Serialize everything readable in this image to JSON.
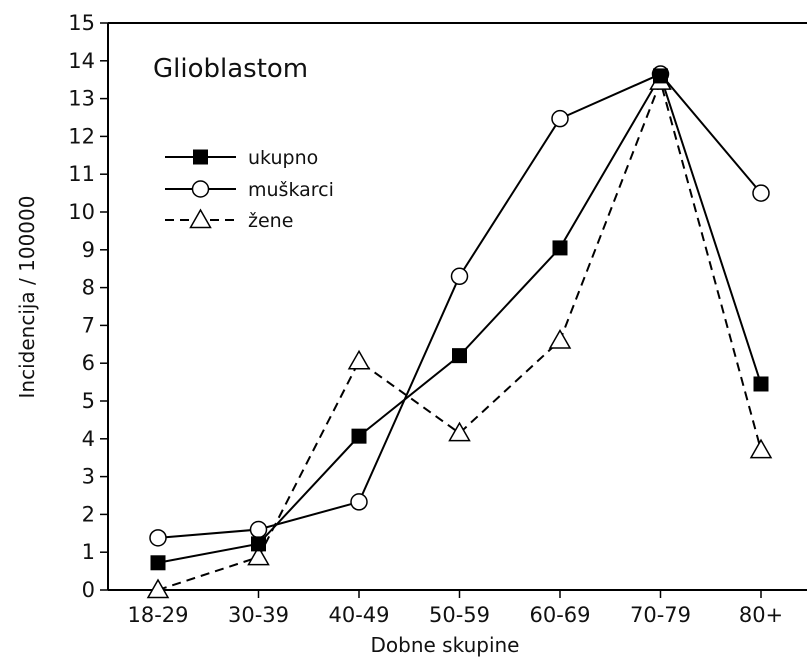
{
  "chart_data": {
    "type": "line",
    "title": "Glioblastom",
    "xlabel": "Dobne skupine",
    "ylabel": "Incidencija / 100000",
    "categories": [
      "18-29",
      "30-39",
      "40-49",
      "50-59",
      "60-69",
      "70-79",
      "80+"
    ],
    "ylim": [
      0,
      15
    ],
    "yticks": [
      0,
      1,
      2,
      3,
      4,
      5,
      6,
      7,
      8,
      9,
      10,
      11,
      12,
      13,
      14,
      15
    ],
    "legend_position": "upper-left",
    "series": [
      {
        "name": "ukupno",
        "marker": "filled-square",
        "line": "solid",
        "values": [
          0.72,
          1.22,
          4.07,
          6.2,
          9.05,
          13.6,
          5.45
        ]
      },
      {
        "name": "muškarci",
        "marker": "open-circle",
        "line": "solid",
        "values": [
          1.38,
          1.6,
          2.33,
          8.3,
          12.47,
          13.65,
          10.5
        ]
      },
      {
        "name": "žene",
        "marker": "open-triangle",
        "line": "dashed",
        "values": [
          0.0,
          0.87,
          6.05,
          4.15,
          6.6,
          13.45,
          3.7
        ]
      }
    ]
  }
}
